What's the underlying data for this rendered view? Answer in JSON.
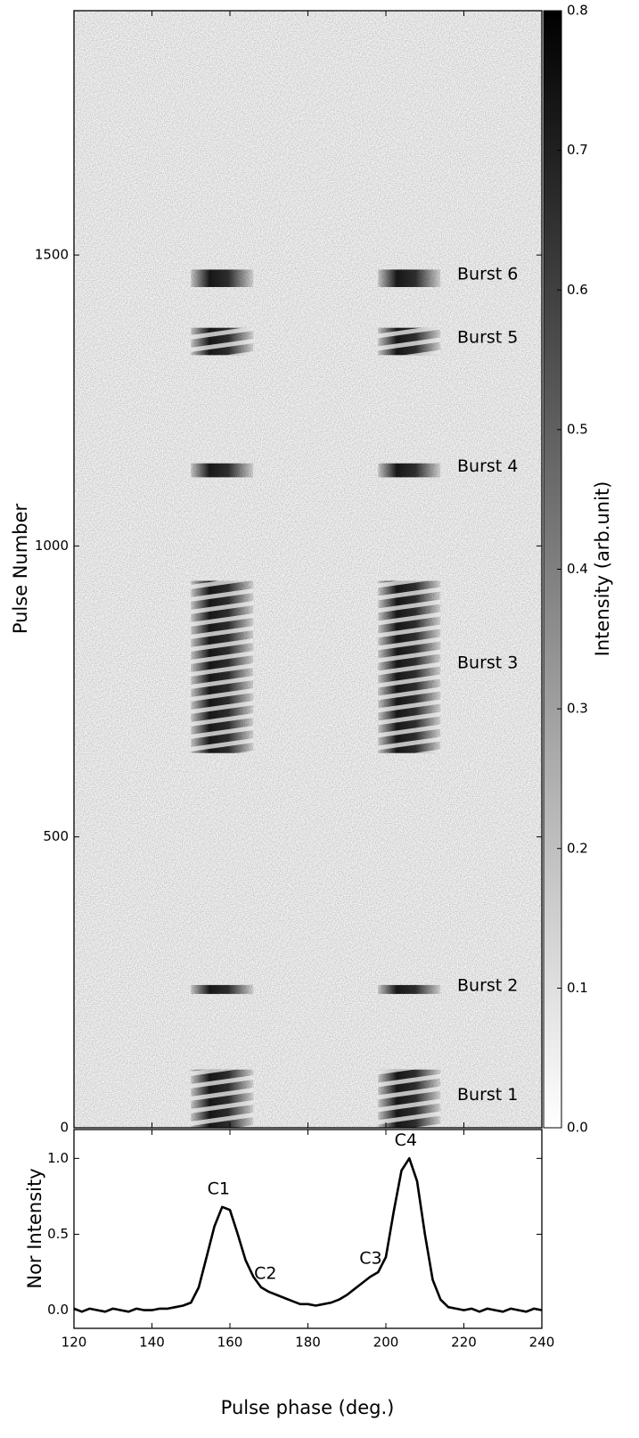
{
  "chart_data": [
    {
      "type": "heatmap",
      "ylabel": "Pulse Number",
      "xlim": [
        120,
        240
      ],
      "ylim": [
        0,
        1920
      ],
      "yticks": [
        0,
        500,
        1000,
        1500
      ],
      "colorbar": {
        "label": "Intensity (arb.unit)",
        "lim": [
          0,
          0.8
        ],
        "ticks": [
          {
            "value": 0,
            "label": "0.0"
          },
          0.1,
          0.2,
          0.3,
          0.4,
          0.5,
          0.6,
          0.7,
          0.8
        ]
      },
      "bursts": [
        {
          "label": "Burst 1",
          "start": 0,
          "end": 100
        },
        {
          "label": "Burst 2",
          "start": 230,
          "end": 245
        },
        {
          "label": "Burst 3",
          "start": 644,
          "end": 940
        },
        {
          "label": "Burst 4",
          "start": 1118,
          "end": 1142
        },
        {
          "label": "Burst 5",
          "start": 1328,
          "end": 1375
        },
        {
          "label": "Burst 6",
          "start": 1445,
          "end": 1475
        }
      ]
    },
    {
      "type": "line",
      "xlabel": "Pulse phase (deg.)",
      "ylabel": "Nor Intensity",
      "color": "#000000",
      "xlim": [
        120,
        240
      ],
      "xticks": [
        120,
        140,
        160,
        180,
        200,
        220,
        240
      ],
      "ylim": [
        -0.12,
        1.19
      ],
      "yticks": [
        {
          "value": 0,
          "label": "0.0"
        },
        0.5,
        {
          "value": 1,
          "label": "1.0"
        }
      ],
      "x": [
        120,
        122,
        124,
        126,
        128,
        130,
        132,
        134,
        136,
        138,
        140,
        142,
        144,
        146,
        148,
        150,
        152,
        154,
        156,
        158,
        160,
        162,
        164,
        166,
        168,
        170,
        172,
        174,
        176,
        178,
        180,
        182,
        184,
        186,
        188,
        190,
        192,
        194,
        196,
        198,
        200,
        202,
        204,
        206,
        208,
        210,
        212,
        214,
        216,
        218,
        220,
        222,
        224,
        226,
        228,
        230,
        232,
        234,
        236,
        238,
        240
      ],
      "values": [
        0.01,
        -0.01,
        0.01,
        0,
        -0.01,
        0.01,
        0,
        -0.01,
        0.01,
        0,
        0,
        0.01,
        0.01,
        0.02,
        0.03,
        0.05,
        0.15,
        0.35,
        0.55,
        0.68,
        0.66,
        0.5,
        0.33,
        0.22,
        0.15,
        0.12,
        0.1,
        0.08,
        0.06,
        0.04,
        0.04,
        0.03,
        0.04,
        0.05,
        0.07,
        0.1,
        0.14,
        0.18,
        0.22,
        0.25,
        0.35,
        0.65,
        0.92,
        1.0,
        0.85,
        0.5,
        0.2,
        0.07,
        0.02,
        0.01,
        0,
        0.01,
        -0.01,
        0.01,
        0,
        -0.01,
        0.01,
        0,
        -0.01,
        0.01,
        0
      ],
      "components": [
        {
          "label": "C1",
          "phase": 158
        },
        {
          "label": "C2",
          "phase": 170
        },
        {
          "label": "C3",
          "phase": 197
        },
        {
          "label": "C4",
          "phase": 206
        }
      ]
    }
  ]
}
